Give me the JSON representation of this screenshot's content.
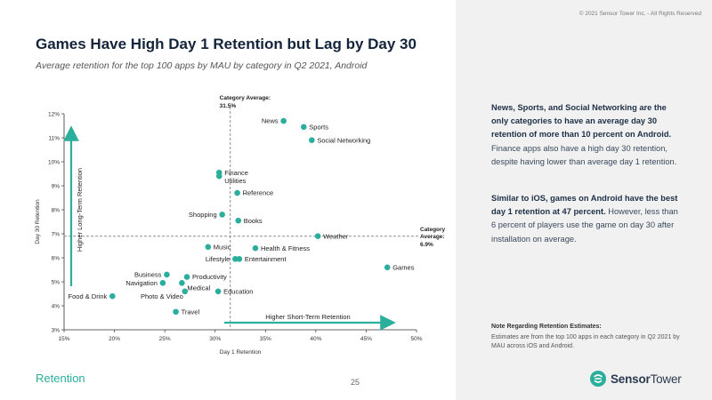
{
  "copyright": "© 2021 Sensor Tower Inc. - All Rights Reserved",
  "title": "Games Have High Day 1 Retention but Lag by Day 30",
  "subtitle": "Average retention for the top 100 apps by MAU by category in Q2 2021, Android",
  "insight1": {
    "bold": "News, Sports, and Social Networking are the only categories to have an average day 30 retention of more than 10 percent on Android.",
    "rest": " Finance apps also have a high day 30 retention, despite having lower than average day 1 retention."
  },
  "insight2": {
    "bold": "Similar to iOS, games on Android have the best day 1 retention at 47 percent.",
    "rest": " However, less than 6 percent of players use the game on day 30 after installation on average."
  },
  "note": {
    "title": "Note Regarding Retention Estimates:",
    "body": "Estimates are from the top 100 apps in each category in Q2 2021 by MAU across iOS and Android."
  },
  "footer": {
    "section": "Retention",
    "page": "25",
    "logo_bold": "Sensor",
    "logo_rest": "Tower"
  },
  "colors": {
    "accent": "#2bae9c",
    "point": "#2bae9c",
    "avg_line": "#999999"
  },
  "chart_data": {
    "type": "scatter",
    "xlabel": "Day 1 Retention",
    "ylabel": "Day 30 Retention",
    "xlim": [
      15,
      50
    ],
    "ylim": [
      3,
      12
    ],
    "x_ticks": [
      "15%",
      "20%",
      "25%",
      "30%",
      "35%",
      "40%",
      "45%",
      "50%"
    ],
    "y_ticks": [
      "3%",
      "4%",
      "5%",
      "6%",
      "7%",
      "8%",
      "9%",
      "10%",
      "11%",
      "12%"
    ],
    "avg_x": 31.5,
    "avg_y": 6.9,
    "avg_x_label": [
      "Category Average:",
      "31.5%"
    ],
    "avg_y_label": [
      "Category",
      "Average:",
      "6.9%"
    ],
    "arrow_x_label": "Higher Short-Term Retention",
    "arrow_y_label": "Higher Long-Term Retention",
    "points": [
      {
        "name": "News",
        "x": 36.8,
        "y": 11.7,
        "pos": "left"
      },
      {
        "name": "Sports",
        "x": 38.8,
        "y": 11.45,
        "pos": "right"
      },
      {
        "name": "Social Networking",
        "x": 39.6,
        "y": 10.9,
        "pos": "right"
      },
      {
        "name": "Finance",
        "x": 30.4,
        "y": 9.55,
        "pos": "right"
      },
      {
        "name": "Utilities",
        "x": 30.4,
        "y": 9.4,
        "pos": "right-low"
      },
      {
        "name": "Reference",
        "x": 32.2,
        "y": 8.7,
        "pos": "right"
      },
      {
        "name": "Shopping",
        "x": 30.7,
        "y": 7.8,
        "pos": "left"
      },
      {
        "name": "Books",
        "x": 32.3,
        "y": 7.55,
        "pos": "right"
      },
      {
        "name": "Weather",
        "x": 40.2,
        "y": 6.9,
        "pos": "right"
      },
      {
        "name": "Music",
        "x": 29.3,
        "y": 6.45,
        "pos": "right"
      },
      {
        "name": "Health & Fitness",
        "x": 34.0,
        "y": 6.4,
        "pos": "right"
      },
      {
        "name": "Lifestyle",
        "x": 32.0,
        "y": 5.95,
        "pos": "left"
      },
      {
        "name": "Entertainment",
        "x": 32.4,
        "y": 5.95,
        "pos": "right"
      },
      {
        "name": "Games",
        "x": 47.1,
        "y": 5.6,
        "pos": "right"
      },
      {
        "name": "Business",
        "x": 25.2,
        "y": 5.3,
        "pos": "left"
      },
      {
        "name": "Productivity",
        "x": 27.2,
        "y": 5.2,
        "pos": "right"
      },
      {
        "name": "Navigation",
        "x": 24.8,
        "y": 4.95,
        "pos": "left"
      },
      {
        "name": "Medical",
        "x": 26.7,
        "y": 4.95,
        "pos": "right-low"
      },
      {
        "name": "Photo & Video",
        "x": 27.0,
        "y": 4.6,
        "pos": "left-low"
      },
      {
        "name": "Education",
        "x": 30.3,
        "y": 4.6,
        "pos": "right"
      },
      {
        "name": "Food & Drink",
        "x": 19.8,
        "y": 4.4,
        "pos": "left"
      },
      {
        "name": "Travel",
        "x": 26.1,
        "y": 3.75,
        "pos": "right"
      }
    ]
  }
}
